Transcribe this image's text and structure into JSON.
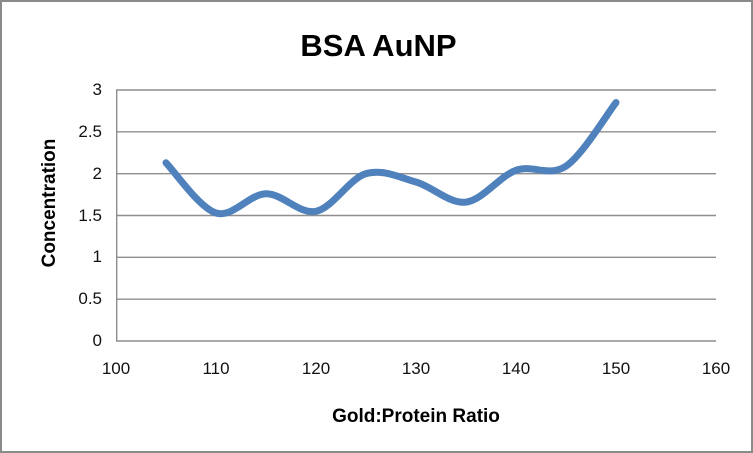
{
  "chart_data": {
    "type": "line",
    "title": "BSA AuNP",
    "xlabel": "Gold:Protein Ratio",
    "ylabel": "Concentration",
    "series": [
      {
        "name": "BSA AuNP",
        "x": [
          105,
          110,
          115,
          120,
          125,
          130,
          135,
          140,
          145,
          150
        ],
        "y": [
          2.13,
          1.53,
          1.76,
          1.55,
          2.0,
          1.9,
          1.66,
          2.04,
          2.09,
          2.85
        ]
      }
    ],
    "xlim": [
      100,
      160
    ],
    "ylim": [
      0,
      3
    ],
    "x_ticks": [
      "100",
      "110",
      "120",
      "130",
      "140",
      "150",
      "160"
    ],
    "y_ticks": [
      "0",
      "0.5",
      "1",
      "1.5",
      "2",
      "2.5",
      "3"
    ],
    "grid": "horizontal",
    "smooth_line": true,
    "markers": false,
    "legend_position": "none",
    "colors": {
      "line": "#4F81BD",
      "gridline": "#8E8E8E",
      "axis": "#8E8E8E",
      "text": "#000000",
      "frame_border": "#8A8A8A",
      "background": "#FFFFFF"
    },
    "line_width": 7
  }
}
